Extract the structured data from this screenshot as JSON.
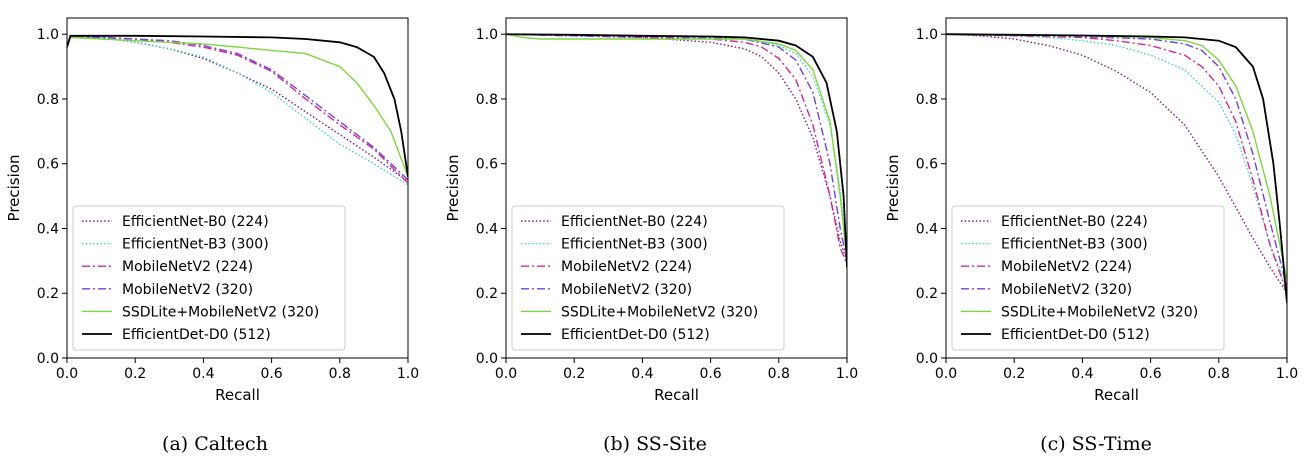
{
  "figure": {
    "captions": [
      "(a) Caltech",
      "(b) SS-Site",
      "(c) SS-Time"
    ]
  },
  "chart_data": [
    {
      "type": "line",
      "caption": "(a) Caltech",
      "xlabel": "Recall",
      "ylabel": "Precision",
      "xlim": [
        0.0,
        1.0
      ],
      "ylim": [
        0.0,
        1.05
      ],
      "xticks": [
        "0.0",
        "0.2",
        "0.4",
        "0.6",
        "0.8",
        "1.0"
      ],
      "yticks": [
        "0.0",
        "0.2",
        "0.4",
        "0.6",
        "0.8",
        "1.0"
      ],
      "grid": false,
      "legend": "lower-left",
      "series": [
        {
          "name": "EfficientNet-B0 (224)",
          "color": "#7b1c8c",
          "dash": "dotted",
          "points": [
            [
              0,
              0.96
            ],
            [
              0.01,
              0.99
            ],
            [
              0.1,
              0.99
            ],
            [
              0.2,
              0.975
            ],
            [
              0.3,
              0.955
            ],
            [
              0.4,
              0.925
            ],
            [
              0.5,
              0.88
            ],
            [
              0.6,
              0.83
            ],
            [
              0.7,
              0.76
            ],
            [
              0.8,
              0.69
            ],
            [
              0.9,
              0.62
            ],
            [
              1.0,
              0.545
            ]
          ]
        },
        {
          "name": "EfficientNet-B3 (300)",
          "color": "#40d0d0",
          "dash": "dotted",
          "points": [
            [
              0,
              0.96
            ],
            [
              0.01,
              0.99
            ],
            [
              0.1,
              0.99
            ],
            [
              0.2,
              0.975
            ],
            [
              0.3,
              0.955
            ],
            [
              0.4,
              0.93
            ],
            [
              0.5,
              0.88
            ],
            [
              0.6,
              0.82
            ],
            [
              0.7,
              0.74
            ],
            [
              0.8,
              0.66
            ],
            [
              0.9,
              0.6
            ],
            [
              1.0,
              0.535
            ]
          ]
        },
        {
          "name": "MobileNetV2 (224)",
          "color": "#d6278c",
          "dash": "dashdot",
          "points": [
            [
              0,
              0.96
            ],
            [
              0.01,
              0.99
            ],
            [
              0.1,
              0.99
            ],
            [
              0.2,
              0.985
            ],
            [
              0.3,
              0.975
            ],
            [
              0.4,
              0.96
            ],
            [
              0.5,
              0.935
            ],
            [
              0.6,
              0.885
            ],
            [
              0.7,
              0.8
            ],
            [
              0.8,
              0.72
            ],
            [
              0.9,
              0.645
            ],
            [
              1.0,
              0.54
            ]
          ]
        },
        {
          "name": "MobileNetV2 (320)",
          "color": "#7040e8",
          "dash": "dashdot",
          "points": [
            [
              0,
              0.96
            ],
            [
              0.01,
              0.99
            ],
            [
              0.1,
              0.99
            ],
            [
              0.2,
              0.985
            ],
            [
              0.3,
              0.98
            ],
            [
              0.4,
              0.965
            ],
            [
              0.5,
              0.94
            ],
            [
              0.6,
              0.89
            ],
            [
              0.7,
              0.81
            ],
            [
              0.8,
              0.73
            ],
            [
              0.9,
              0.65
            ],
            [
              1.0,
              0.55
            ]
          ]
        },
        {
          "name": "SSDLite+MobileNetV2 (320)",
          "color": "#7ed640",
          "dash": "solid",
          "points": [
            [
              0,
              0.96
            ],
            [
              0.01,
              0.99
            ],
            [
              0.1,
              0.985
            ],
            [
              0.2,
              0.98
            ],
            [
              0.3,
              0.975
            ],
            [
              0.4,
              0.97
            ],
            [
              0.5,
              0.96
            ],
            [
              0.6,
              0.95
            ],
            [
              0.7,
              0.94
            ],
            [
              0.8,
              0.9
            ],
            [
              0.85,
              0.85
            ],
            [
              0.9,
              0.78
            ],
            [
              0.95,
              0.7
            ],
            [
              1.0,
              0.56
            ]
          ]
        },
        {
          "name": "EfficientDet-D0 (512)",
          "color": "#000000",
          "dash": "solid",
          "points": [
            [
              0,
              0.96
            ],
            [
              0.01,
              0.995
            ],
            [
              0.2,
              0.995
            ],
            [
              0.4,
              0.993
            ],
            [
              0.6,
              0.99
            ],
            [
              0.7,
              0.985
            ],
            [
              0.8,
              0.975
            ],
            [
              0.85,
              0.96
            ],
            [
              0.9,
              0.93
            ],
            [
              0.93,
              0.88
            ],
            [
              0.96,
              0.8
            ],
            [
              0.98,
              0.7
            ],
            [
              1.0,
              0.56
            ]
          ]
        }
      ]
    },
    {
      "type": "line",
      "caption": "(b) SS-Site",
      "xlabel": "Recall",
      "ylabel": "Precision",
      "xlim": [
        0.0,
        1.0
      ],
      "ylim": [
        0.0,
        1.05
      ],
      "xticks": [
        "0.0",
        "0.2",
        "0.4",
        "0.6",
        "0.8",
        "1.0"
      ],
      "yticks": [
        "0.0",
        "0.2",
        "0.4",
        "0.6",
        "0.8",
        "1.0"
      ],
      "grid": false,
      "legend": "lower-left",
      "series": [
        {
          "name": "EfficientNet-B0 (224)",
          "color": "#7b1c8c",
          "dash": "dotted",
          "points": [
            [
              0,
              1.0
            ],
            [
              0.2,
              0.995
            ],
            [
              0.4,
              0.99
            ],
            [
              0.6,
              0.975
            ],
            [
              0.7,
              0.955
            ],
            [
              0.75,
              0.93
            ],
            [
              0.8,
              0.88
            ],
            [
              0.85,
              0.8
            ],
            [
              0.9,
              0.68
            ],
            [
              0.95,
              0.5
            ],
            [
              0.98,
              0.36
            ],
            [
              1.0,
              0.3
            ]
          ]
        },
        {
          "name": "EfficientNet-B3 (300)",
          "color": "#40d0d0",
          "dash": "dotted",
          "points": [
            [
              0,
              1.0
            ],
            [
              0.2,
              0.995
            ],
            [
              0.4,
              0.993
            ],
            [
              0.6,
              0.99
            ],
            [
              0.7,
              0.985
            ],
            [
              0.8,
              0.965
            ],
            [
              0.85,
              0.94
            ],
            [
              0.9,
              0.87
            ],
            [
              0.95,
              0.72
            ],
            [
              0.98,
              0.52
            ],
            [
              1.0,
              0.33
            ]
          ]
        },
        {
          "name": "MobileNetV2 (224)",
          "color": "#d6278c",
          "dash": "dashdot",
          "points": [
            [
              0,
              1.0
            ],
            [
              0.2,
              0.995
            ],
            [
              0.4,
              0.99
            ],
            [
              0.6,
              0.985
            ],
            [
              0.7,
              0.975
            ],
            [
              0.75,
              0.96
            ],
            [
              0.8,
              0.925
            ],
            [
              0.85,
              0.86
            ],
            [
              0.9,
              0.72
            ],
            [
              0.95,
              0.5
            ],
            [
              0.98,
              0.34
            ],
            [
              1.0,
              0.29
            ]
          ]
        },
        {
          "name": "MobileNetV2 (320)",
          "color": "#7040e8",
          "dash": "dashdot",
          "points": [
            [
              0,
              1.0
            ],
            [
              0.2,
              0.995
            ],
            [
              0.4,
              0.993
            ],
            [
              0.6,
              0.99
            ],
            [
              0.7,
              0.985
            ],
            [
              0.8,
              0.96
            ],
            [
              0.85,
              0.92
            ],
            [
              0.9,
              0.82
            ],
            [
              0.95,
              0.6
            ],
            [
              0.98,
              0.4
            ],
            [
              1.0,
              0.3
            ]
          ]
        },
        {
          "name": "SSDLite+MobileNetV2 (320)",
          "color": "#7ed640",
          "dash": "solid",
          "points": [
            [
              0,
              1.0
            ],
            [
              0.05,
              0.99
            ],
            [
              0.1,
              0.985
            ],
            [
              0.2,
              0.985
            ],
            [
              0.4,
              0.985
            ],
            [
              0.6,
              0.985
            ],
            [
              0.7,
              0.985
            ],
            [
              0.8,
              0.97
            ],
            [
              0.85,
              0.95
            ],
            [
              0.9,
              0.89
            ],
            [
              0.95,
              0.73
            ],
            [
              0.98,
              0.5
            ],
            [
              1.0,
              0.3
            ]
          ]
        },
        {
          "name": "EfficientDet-D0 (512)",
          "color": "#000000",
          "dash": "solid",
          "points": [
            [
              0,
              1.0
            ],
            [
              0.2,
              0.998
            ],
            [
              0.4,
              0.995
            ],
            [
              0.6,
              0.993
            ],
            [
              0.7,
              0.99
            ],
            [
              0.8,
              0.98
            ],
            [
              0.85,
              0.965
            ],
            [
              0.9,
              0.93
            ],
            [
              0.94,
              0.85
            ],
            [
              0.97,
              0.7
            ],
            [
              0.99,
              0.5
            ],
            [
              1.0,
              0.28
            ]
          ]
        }
      ]
    },
    {
      "type": "line",
      "caption": "(c) SS-Time",
      "xlabel": "Recall",
      "ylabel": "Precision",
      "xlim": [
        0.0,
        1.0
      ],
      "ylim": [
        0.0,
        1.05
      ],
      "xticks": [
        "0.0",
        "0.2",
        "0.4",
        "0.6",
        "0.8",
        "1.0"
      ],
      "yticks": [
        "0.0",
        "0.2",
        "0.4",
        "0.6",
        "0.8",
        "1.0"
      ],
      "grid": false,
      "legend": "lower-left",
      "series": [
        {
          "name": "EfficientNet-B0 (224)",
          "color": "#7b1c8c",
          "dash": "dotted",
          "points": [
            [
              0,
              1.0
            ],
            [
              0.1,
              0.995
            ],
            [
              0.2,
              0.985
            ],
            [
              0.3,
              0.965
            ],
            [
              0.4,
              0.935
            ],
            [
              0.5,
              0.885
            ],
            [
              0.6,
              0.82
            ],
            [
              0.7,
              0.72
            ],
            [
              0.8,
              0.56
            ],
            [
              0.9,
              0.37
            ],
            [
              0.95,
              0.28
            ],
            [
              1.0,
              0.2
            ]
          ]
        },
        {
          "name": "EfficientNet-B3 (300)",
          "color": "#40d0d0",
          "dash": "dotted",
          "points": [
            [
              0,
              1.0
            ],
            [
              0.2,
              0.995
            ],
            [
              0.3,
              0.99
            ],
            [
              0.4,
              0.98
            ],
            [
              0.5,
              0.965
            ],
            [
              0.6,
              0.935
            ],
            [
              0.7,
              0.89
            ],
            [
              0.8,
              0.79
            ],
            [
              0.85,
              0.69
            ],
            [
              0.9,
              0.53
            ],
            [
              0.95,
              0.35
            ],
            [
              1.0,
              0.22
            ]
          ]
        },
        {
          "name": "MobileNetV2 (224)",
          "color": "#d6278c",
          "dash": "dashdot",
          "points": [
            [
              0,
              1.0
            ],
            [
              0.2,
              0.995
            ],
            [
              0.4,
              0.99
            ],
            [
              0.5,
              0.98
            ],
            [
              0.6,
              0.965
            ],
            [
              0.7,
              0.935
            ],
            [
              0.75,
              0.9
            ],
            [
              0.8,
              0.84
            ],
            [
              0.85,
              0.73
            ],
            [
              0.9,
              0.55
            ],
            [
              0.95,
              0.35
            ],
            [
              1.0,
              0.2
            ]
          ]
        },
        {
          "name": "MobileNetV2 (320)",
          "color": "#7040e8",
          "dash": "dashdot",
          "points": [
            [
              0,
              1.0
            ],
            [
              0.2,
              0.997
            ],
            [
              0.4,
              0.993
            ],
            [
              0.6,
              0.985
            ],
            [
              0.7,
              0.97
            ],
            [
              0.75,
              0.95
            ],
            [
              0.8,
              0.9
            ],
            [
              0.85,
              0.8
            ],
            [
              0.9,
              0.63
            ],
            [
              0.95,
              0.42
            ],
            [
              1.0,
              0.22
            ]
          ]
        },
        {
          "name": "SSDLite+MobileNetV2 (320)",
          "color": "#7ed640",
          "dash": "solid",
          "points": [
            [
              0,
              1.0
            ],
            [
              0.2,
              0.997
            ],
            [
              0.4,
              0.995
            ],
            [
              0.6,
              0.99
            ],
            [
              0.7,
              0.98
            ],
            [
              0.75,
              0.965
            ],
            [
              0.8,
              0.92
            ],
            [
              0.85,
              0.84
            ],
            [
              0.9,
              0.7
            ],
            [
              0.95,
              0.5
            ],
            [
              1.0,
              0.24
            ]
          ]
        },
        {
          "name": "EfficientDet-D0 (512)",
          "color": "#000000",
          "dash": "solid",
          "points": [
            [
              0,
              1.0
            ],
            [
              0.2,
              0.998
            ],
            [
              0.4,
              0.996
            ],
            [
              0.6,
              0.993
            ],
            [
              0.7,
              0.99
            ],
            [
              0.8,
              0.98
            ],
            [
              0.85,
              0.96
            ],
            [
              0.9,
              0.9
            ],
            [
              0.93,
              0.8
            ],
            [
              0.96,
              0.6
            ],
            [
              0.98,
              0.4
            ],
            [
              1.0,
              0.17
            ]
          ]
        }
      ]
    }
  ]
}
